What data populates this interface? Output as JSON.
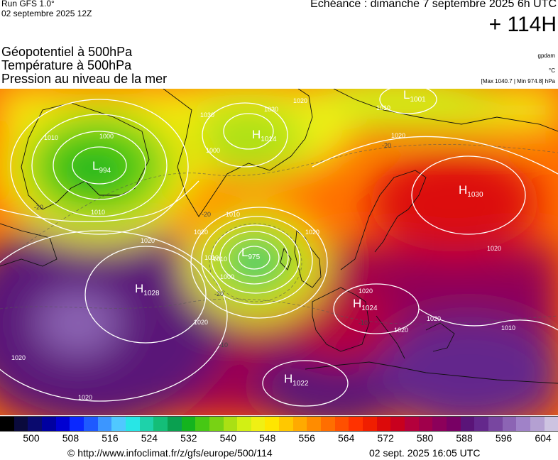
{
  "header": {
    "run": "Run GFS 1.0°",
    "run_date": "02 septembre 2025 12Z",
    "echeance": "Echéance : dimanche 7 septembre 2025 6h UTC",
    "hour": "+ 114H"
  },
  "titles": [
    "Géopotentiel à 500hPa",
    "Température à 500hPa",
    "Pression au niveau de la mer"
  ],
  "units": {
    "geopotential": "gpdam",
    "temperature": "°C",
    "pressure": "[Max 1040.7 | Min 974.8] hPa"
  },
  "pressure_centers": [
    {
      "type": "L",
      "value": "1001"
    },
    {
      "type": "L",
      "value": "994"
    },
    {
      "type": "H",
      "value": "1014"
    },
    {
      "type": "L",
      "value": "975"
    },
    {
      "type": "H",
      "value": "1030"
    },
    {
      "type": "H",
      "value": "1028"
    },
    {
      "type": "H",
      "value": "1024"
    },
    {
      "type": "H",
      "value": "1022"
    }
  ],
  "isobar_labels": [
    "1030",
    "1010",
    "1020",
    "1000",
    "1010",
    "1000",
    "1010",
    "1020",
    "1020",
    "1010",
    "1020",
    "1020",
    "1020",
    "1010",
    "1020",
    "1000",
    "1010",
    "1020",
    "1030",
    "1020",
    "1020",
    "1020",
    "1010",
    "1020"
  ],
  "temperature_labels": [
    "-20",
    "-20",
    "-20",
    "-20",
    "-10",
    "-10"
  ],
  "colorbar": {
    "ticks": [
      "500",
      "508",
      "516",
      "524",
      "532",
      "540",
      "548",
      "556",
      "564",
      "572",
      "580",
      "588",
      "596",
      "604"
    ],
    "colors": [
      "#000000",
      "#0a0a3c",
      "#0a0a6e",
      "#0000a0",
      "#0000d2",
      "#0a28ff",
      "#1e5aff",
      "#3c96ff",
      "#50c8ff",
      "#28e6e6",
      "#1ed2aa",
      "#14be78",
      "#0aa050",
      "#14b41e",
      "#46c814",
      "#78d214",
      "#aae014",
      "#d2f014",
      "#f0f014",
      "#ffe600",
      "#ffc800",
      "#ffaa00",
      "#ff8c00",
      "#ff6e00",
      "#ff5000",
      "#ff3200",
      "#f01e00",
      "#dc0a0a",
      "#c8001e",
      "#b4003c",
      "#a0004b",
      "#8c005a",
      "#780064",
      "#5a1478",
      "#64288c",
      "#7846a0",
      "#8c64b4",
      "#a082c8",
      "#b4a0d2",
      "#cdc3e1"
    ]
  },
  "footer": {
    "copyright": "© http://www.infoclimat.fr/z/gfs/europe/500/114",
    "generated": "02 sept. 2025 16:05 UTC"
  }
}
